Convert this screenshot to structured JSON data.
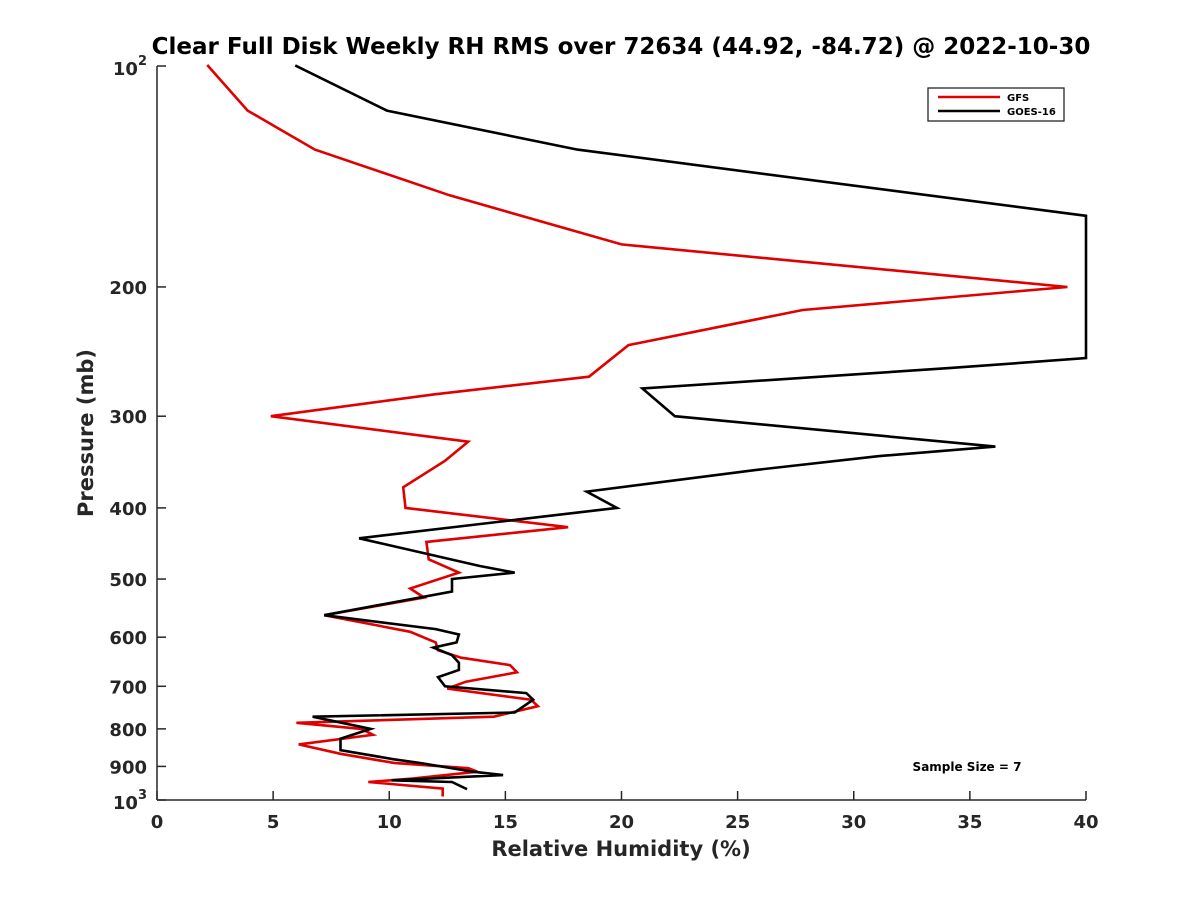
{
  "chart_data": {
    "type": "line",
    "title": "Clear Full Disk Weekly RH RMS over 72634 (44.92, -84.72) @ 2022-10-30",
    "xlabel": "Relative Humidity (%)",
    "ylabel": "Pressure (mb)",
    "xlim": [
      0,
      40
    ],
    "ylim": [
      100,
      1000
    ],
    "yscale": "log",
    "y_reversed": true,
    "xticks": [
      "0",
      "5",
      "10",
      "15",
      "20",
      "25",
      "30",
      "35",
      "40"
    ],
    "yticks": [
      {
        "value": 100,
        "base": "10",
        "exp": "2"
      },
      {
        "value": 200,
        "label": "200"
      },
      {
        "value": 300,
        "label": "300"
      },
      {
        "value": 400,
        "label": "400"
      },
      {
        "value": 500,
        "label": "500"
      },
      {
        "value": 600,
        "label": "600"
      },
      {
        "value": 700,
        "label": "700"
      },
      {
        "value": 800,
        "label": "800"
      },
      {
        "value": 900,
        "label": "900"
      },
      {
        "value": 1000,
        "base": "10",
        "exp": "3"
      }
    ],
    "legend": {
      "position": "top-right",
      "entries": [
        "GFS",
        "GOES-16"
      ]
    },
    "annotation": "Sample Size = 7",
    "series": [
      {
        "name": "GFS",
        "color": "#e00000",
        "points": [
          [
            2.2,
            100
          ],
          [
            3.9,
            115
          ],
          [
            6.8,
            130
          ],
          [
            12.6,
            150
          ],
          [
            20.0,
            175
          ],
          [
            39.2,
            200
          ],
          [
            27.8,
            215
          ],
          [
            20.3,
            240
          ],
          [
            18.6,
            265
          ],
          [
            12.0,
            280
          ],
          [
            4.9,
            300
          ],
          [
            13.4,
            325
          ],
          [
            12.4,
            345
          ],
          [
            10.6,
            375
          ],
          [
            10.7,
            400
          ],
          [
            17.7,
            425
          ],
          [
            11.6,
            445
          ],
          [
            11.7,
            470
          ],
          [
            13.0,
            490
          ],
          [
            10.9,
            515
          ],
          [
            11.5,
            530
          ],
          [
            7.2,
            560
          ],
          [
            10.9,
            590
          ],
          [
            12.0,
            610
          ],
          [
            12.1,
            625
          ],
          [
            13.1,
            640
          ],
          [
            15.2,
            655
          ],
          [
            15.5,
            670
          ],
          [
            13.3,
            690
          ],
          [
            12.5,
            705
          ],
          [
            16.1,
            730
          ],
          [
            16.4,
            745
          ],
          [
            14.5,
            770
          ],
          [
            6.0,
            785
          ],
          [
            8.8,
            800
          ],
          [
            9.3,
            815
          ],
          [
            6.1,
            840
          ],
          [
            7.9,
            865
          ],
          [
            10.2,
            890
          ],
          [
            13.4,
            905
          ],
          [
            13.8,
            915
          ],
          [
            11.0,
            935
          ],
          [
            9.1,
            945
          ],
          [
            12.3,
            965
          ],
          [
            12.3,
            985
          ]
        ]
      },
      {
        "name": "GOES-16",
        "color": "#000000",
        "points": [
          [
            6.0,
            100
          ],
          [
            9.9,
            115
          ],
          [
            18.1,
            130
          ],
          [
            40.0,
            160
          ],
          [
            40.0,
            250
          ],
          [
            34.1,
            258
          ],
          [
            20.9,
            275
          ],
          [
            22.3,
            300
          ],
          [
            36.1,
            330
          ],
          [
            31.1,
            340
          ],
          [
            25.8,
            355
          ],
          [
            18.5,
            380
          ],
          [
            19.8,
            400
          ],
          [
            8.7,
            440
          ],
          [
            13.9,
            480
          ],
          [
            15.4,
            490
          ],
          [
            12.7,
            500
          ],
          [
            12.7,
            520
          ],
          [
            7.2,
            560
          ],
          [
            12.0,
            585
          ],
          [
            13.0,
            595
          ],
          [
            12.9,
            610
          ],
          [
            11.9,
            620
          ],
          [
            12.7,
            635
          ],
          [
            13.0,
            650
          ],
          [
            13.0,
            665
          ],
          [
            12.1,
            680
          ],
          [
            12.4,
            700
          ],
          [
            15.9,
            715
          ],
          [
            16.2,
            730
          ],
          [
            15.4,
            760
          ],
          [
            6.7,
            770
          ],
          [
            9.2,
            800
          ],
          [
            7.9,
            825
          ],
          [
            7.9,
            855
          ],
          [
            10.2,
            880
          ],
          [
            11.3,
            890
          ],
          [
            13.6,
            915
          ],
          [
            14.9,
            925
          ],
          [
            10.1,
            940
          ],
          [
            12.7,
            945
          ],
          [
            13.3,
            965
          ]
        ]
      }
    ]
  }
}
